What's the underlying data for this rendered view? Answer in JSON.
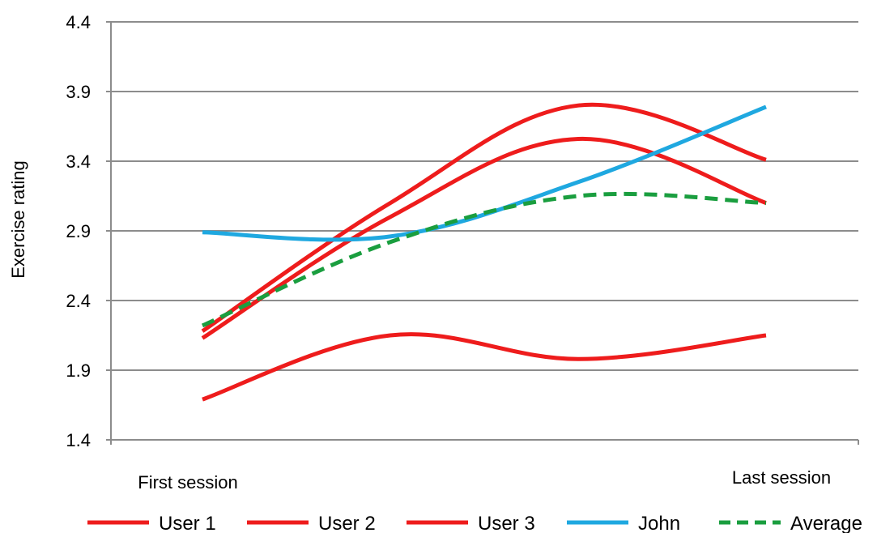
{
  "chart_data": {
    "type": "line",
    "title": "",
    "xlabel": "",
    "ylabel": "Exercise rating",
    "ylim": [
      1.4,
      4.4
    ],
    "yticks": [
      "4.4",
      "3.9",
      "3.4",
      "2.9",
      "2.4",
      "1.9",
      "1.4"
    ],
    "x_labels": {
      "first": "First session",
      "last": "Last session"
    },
    "grid": "horizontal",
    "legend_position": "bottom",
    "series": [
      {
        "name": "User 1",
        "color": "#ee1c1c",
        "dash": "solid",
        "values": [
          2.18,
          3.1,
          3.8,
          3.41
        ]
      },
      {
        "name": "User 2",
        "color": "#ee1c1c",
        "dash": "solid",
        "values": [
          2.13,
          3.0,
          3.56,
          3.1
        ]
      },
      {
        "name": "User 3",
        "color": "#ee1c1c",
        "dash": "solid",
        "values": [
          1.69,
          2.15,
          1.98,
          2.15
        ]
      },
      {
        "name": "John",
        "color": "#1fa8e0",
        "dash": "solid",
        "values": [
          2.89,
          2.86,
          3.25,
          3.79
        ]
      },
      {
        "name": "Average",
        "color": "#1a9e3f",
        "dash": "dashed",
        "values": [
          2.22,
          2.82,
          3.15,
          3.1
        ]
      }
    ]
  }
}
